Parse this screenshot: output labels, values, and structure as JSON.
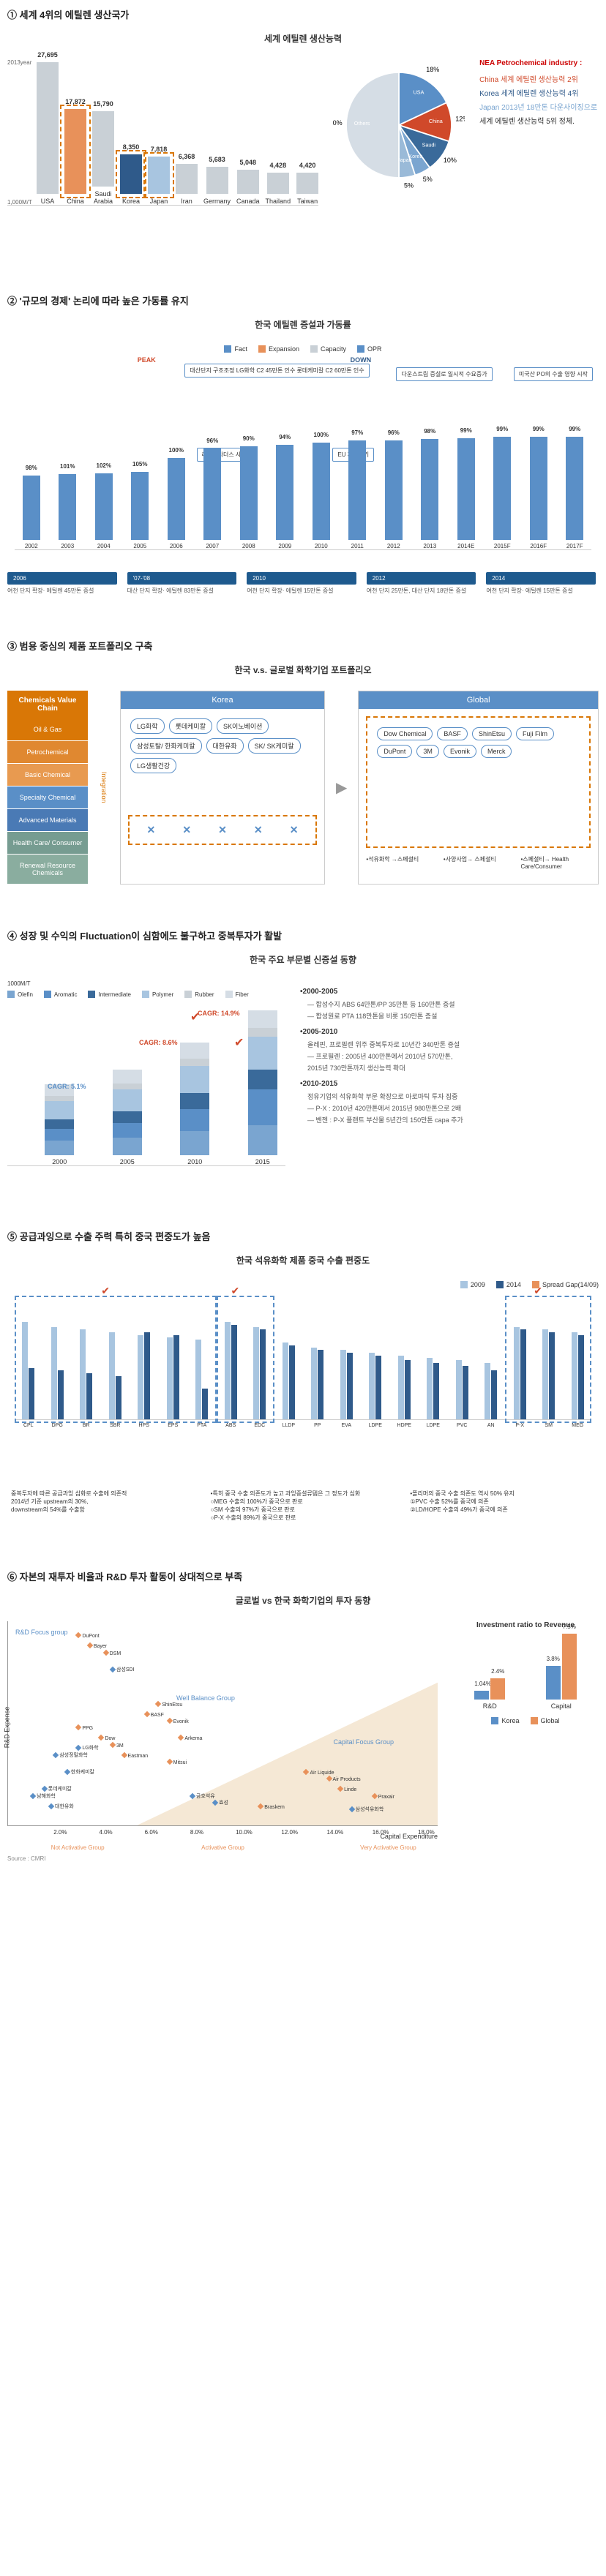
{
  "colors": {
    "bar_gray": "#c9d0d6",
    "bar_orange": "#e8915a",
    "bar_navy": "#2f5a8a",
    "bar_light_blue": "#a8c5e0",
    "pie_usa": "#5a8fc7",
    "pie_china": "#d0492a",
    "pie_saudi": "#3a6a9a",
    "pie_korea": "#7aa5d0",
    "pie_japan": "#9abad8",
    "pie_others": "#d5dde5",
    "fact": "#5a8fc7",
    "expansion": "#e8915a",
    "capacity": "#c9d0d6",
    "chain_oil": "#d97706",
    "chain_petro": "#e08830",
    "chain_basic": "#e89a50",
    "chain_specialty": "#5a8fc7",
    "chain_advanced": "#4a7ab5",
    "chain_health": "#769c91",
    "chain_renewal": "#8aad9f",
    "olefin": "#7aa5d0",
    "aromatic": "#5a8fc7",
    "intermediate": "#3a6a9a",
    "polymer": "#a8c5e0",
    "rubber": "#c9d0d6",
    "fiber": "#d5dde5",
    "s5_2009": "#a8c5e0",
    "s5_2014": "#2f5a8a",
    "s5_spread": "#e8915a",
    "scatter_global": "#e8915a",
    "scatter_korea": "#5a8fc7",
    "scatter_bg": "#f5e8d5"
  },
  "s1": {
    "title": "① 세계 4위의 에틸렌 생산국가",
    "chart_title": "세계 에틸렌 생산능력",
    "y_label_top": "2013year",
    "y_label_unit": "1,000M/T",
    "bars": [
      {
        "label": "USA",
        "value": 27695,
        "color": "#c9d0d6"
      },
      {
        "label": "China",
        "value": 17872,
        "color": "#e8915a",
        "boxed": true
      },
      {
        "label": "Saudi Arabia",
        "value": 15790,
        "color": "#c9d0d6"
      },
      {
        "label": "Korea",
        "value": 8350,
        "color": "#2f5a8a",
        "boxed": true
      },
      {
        "label": "Japan",
        "value": 7818,
        "color": "#a8c5e0",
        "boxed": true
      },
      {
        "label": "Iran",
        "value": 6368,
        "color": "#c9d0d6"
      },
      {
        "label": "Germany",
        "value": 5683,
        "color": "#c9d0d6"
      },
      {
        "label": "Canada",
        "value": 5048,
        "color": "#c9d0d6"
      },
      {
        "label": "Thailand",
        "value": 4428,
        "color": "#c9d0d6"
      },
      {
        "label": "Taiwan",
        "value": 4420,
        "color": "#c9d0d6"
      }
    ],
    "pie": [
      {
        "label": "USA",
        "pct": 18,
        "color": "#5a8fc7"
      },
      {
        "label": "China",
        "pct": 12,
        "color": "#d0492a"
      },
      {
        "label": "Saudi",
        "pct": 10,
        "color": "#3a6a9a"
      },
      {
        "label": "Korea",
        "pct": 5,
        "color": "#7aa5d0"
      },
      {
        "label": "Japan",
        "pct": 5,
        "color": "#9abad8"
      },
      {
        "label": "Others",
        "pct": 50,
        "color": "#d5dde5"
      }
    ],
    "legend_title": "NEA Petrochemical industry :",
    "legend_items": [
      {
        "text": "China 세계 에틸렌 생산능력 2위",
        "color": "#d0492a"
      },
      {
        "text": "Korea 세계 에틸렌 생산능력 4위",
        "color": "#2f5a8a"
      },
      {
        "text": "Japan 2013년 18만톤 다운사이징으로",
        "color": "#7aa5d0"
      },
      {
        "text": "세계 에틸렌 생산능력 5위 정체.",
        "color": "#333"
      }
    ]
  },
  "s2": {
    "title": "② '규모의 경제' 논리에 따라 높은 가동률 유지",
    "chart_title": "한국 에틸렌 증설과 가동률",
    "legend": [
      "Fact",
      "Expansion",
      "Capacity",
      "OPR"
    ],
    "peak_label": "PEAK",
    "down_label": "DOWN",
    "years": [
      "2002",
      "2003",
      "2004",
      "2005",
      "2006",
      "2007",
      "2008",
      "2009",
      "2010",
      "2011",
      "2012",
      "2013",
      "2014E",
      "2015F",
      "2016F",
      "2017F"
    ],
    "opr": [
      98,
      101,
      102,
      105,
      100,
      96,
      90,
      94,
      100,
      97,
      96,
      98,
      99,
      99,
      99,
      99
    ],
    "capacity": [
      550,
      560,
      570,
      580,
      700,
      780,
      800,
      810,
      830,
      850,
      850,
      860,
      870,
      880,
      880,
      880
    ],
    "annotations": [
      {
        "text": "대산단지 구조조정\nLG화학 C2 45만톤 인수\n롯데케미칼 C2 60만톤 인수",
        "pos": "top-center"
      },
      {
        "text": "다운스트림 증설로\n일시적 수요증가",
        "pos": "top-right"
      },
      {
        "text": "리먼브라더스\n사태",
        "pos": "mid-left"
      },
      {
        "text": "EU 재정위기",
        "pos": "mid-center"
      },
      {
        "text": "미국산 PO의\n수출 영향 시작",
        "pos": "top-far-right"
      }
    ],
    "milestones": [
      {
        "year": "2006",
        "desc": "여천 단지 확장·\n에틸렌 45만톤 증설"
      },
      {
        "year": "'07-'08",
        "desc": "대산 단지 확장·\n에틸렌 83만톤 증설"
      },
      {
        "year": "2010",
        "desc": "여천 단지 확장·\n에틸렌 15만톤 증설"
      },
      {
        "year": "2012",
        "desc": "여천 단지 25만톤,\n대산 단지 18만톤 증설"
      },
      {
        "year": "2014",
        "desc": "여천 단지 확장·\n에틸렌 15만톤 증설"
      }
    ]
  },
  "s3": {
    "title": "③ 범용 중심의 제품 포트폴리오 구축",
    "chart_title": "한국 v.s. 글로벌 화학기업 포트폴리오",
    "chain_header": "Chemicals\nValue Chain",
    "chain": [
      {
        "label": "Oil & Gas",
        "color": "#d97706"
      },
      {
        "label": "Petrochemical",
        "color": "#e08830"
      },
      {
        "label": "Basic Chemical",
        "color": "#e89a50"
      },
      {
        "label": "Specialty\nChemical",
        "color": "#5a8fc7"
      },
      {
        "label": "Advanced\nMaterials",
        "color": "#4a7ab5"
      },
      {
        "label": "Health Care/\nConsumer",
        "color": "#769c91"
      },
      {
        "label": "Renewal\nResource\nChemicals",
        "color": "#8aad9f"
      }
    ],
    "integration_label": "Integration",
    "korea_header": "Korea",
    "korea_companies": [
      "LG화학",
      "롯데케미칼",
      "SK이노베이션",
      "삼성토탈/\n한화케미칼",
      "대한유화",
      "SK/\nSK케미칼",
      "LG생활건강"
    ],
    "global_header": "Global",
    "global_companies": [
      "Dow\nChemical",
      "BASF",
      "ShinEtsu",
      "Fuji Film",
      "DuPont",
      "3M",
      "Evonik",
      "Merck"
    ],
    "arrows": [
      "•석유화학\n→스페셜티",
      "•사양사업→\n스페셜티",
      "•스페셜티→\nHealth Care/Consumer"
    ]
  },
  "s4": {
    "title": "④ 성장 및 수익의 Fluctuation이 심함에도 불구하고 중복투자가 활발",
    "chart_title": "한국 주요 부문별 신증설 동향",
    "y_unit": "1000M/T",
    "legend": [
      "Olefin",
      "Aromatic",
      "Intermediate",
      "Polymer",
      "Rubber",
      "Fiber"
    ],
    "years": [
      "2000",
      "2005",
      "2010",
      "2015"
    ],
    "stacks": [
      [
        3500,
        2800,
        2200,
        4500,
        1200,
        2800
      ],
      [
        4200,
        3500,
        2800,
        5200,
        1500,
        3200
      ],
      [
        5800,
        5200,
        3800,
        6500,
        1800,
        3800
      ],
      [
        7200,
        8500,
        4800,
        7800,
        2200,
        4200
      ]
    ],
    "cagr": [
      {
        "label": "CAGR: 5.1%",
        "color": "#5a8fc7",
        "pos": "left"
      },
      {
        "label": "CAGR: 8.6%",
        "color": "#d0492a",
        "pos": "center"
      },
      {
        "label": "CAGR: 14.9%",
        "color": "#d0492a",
        "pos": "right"
      }
    ],
    "notes": [
      {
        "period": "•2000-2005",
        "items": [
          "— 합성수지 ABS 64만톤/PP 35만톤 등 160만톤 증설",
          "— 합성원료 PTA 118만톤을 비롯 150만톤 증설"
        ]
      },
      {
        "period": "•2005-2010",
        "items": [
          "올레핀, 프로필렌 위주 중복투자로 10년간 340만톤 증설",
          "— 프로필렌 : 2005년 400만톤에서 2010년 570만톤,",
          "2015년 730만톤까지 생산능력 확대"
        ]
      },
      {
        "period": "•2010-2015",
        "items": [
          "정유기업의 석유화학 부문 확장으로 아로마틱 투자 집중",
          "— P-X : 2010년 420만톤에서 2015년 980만톤으로 2배",
          "— 벤젠 : P-X 플랜트 부산물 5년간의 150만톤 capa 추가"
        ]
      }
    ]
  },
  "s5": {
    "title": "⑤ 공급과잉으로 수출 주력 특히 중국 편중도가 높음",
    "chart_title": "한국 석유화학 제품 중국 수출 편중도",
    "legend": [
      "2009",
      "2014",
      "Spread Gap(14/09)"
    ],
    "products": [
      "CPL",
      "DPG",
      "BR",
      "SBR",
      "HPS",
      "EPS",
      "PTA",
      "ABS",
      "EDC",
      "LLDP",
      "PP",
      "EVA",
      "LDPE",
      "HDPE",
      "LDPE",
      "PVC",
      "AN",
      "P-X",
      "SM",
      "MEG"
    ],
    "v2009": [
      95,
      90,
      88,
      85,
      82,
      80,
      78,
      95,
      90,
      75,
      70,
      68,
      65,
      62,
      60,
      58,
      55,
      90,
      88,
      85
    ],
    "v2014": [
      50,
      48,
      45,
      42,
      85,
      82,
      30,
      92,
      88,
      72,
      68,
      65,
      62,
      58,
      55,
      52,
      48,
      88,
      85,
      82
    ],
    "boxes": [
      {
        "start": 0,
        "end": 6
      },
      {
        "start": 7,
        "end": 8
      },
      {
        "start": 17,
        "end": 19
      }
    ],
    "notes": [
      "중복투자에 따른 공급과잉 심화로 수출에 의존적\n2014년 기준 upstream의 30%,\ndownstream의 54%를 수출함",
      "•특히 중국 수출 의존도가 높고 과잉증설류템은 그 정도가 심화\n○MEG 수출의 100%가 중국으로 판로\n○SM 수출의 97%가 중국으로 판로\n○P-X 수출의 89%가 중국으로 판로",
      "•폴리머의 중국 수출 의존도 역시 50% 유지\n①PVC 수출 52%를 중국에 의존\n②LD/HOPE 수출의 49%가 중국에 의존"
    ]
  },
  "s6": {
    "title": "⑥ 자본의 재투자 비율과 R&D 투자 활동이 상대적으로 부족",
    "chart_title": "글로벌 vs 한국 화학기업의 투자 동향",
    "x_label": "Capital Expenditure",
    "y_label": "R&D Expense",
    "x_ticks": [
      "2.0%",
      "4.0%",
      "6.0%",
      "8.0%",
      "10.0%",
      "12.0%",
      "14.0%",
      "16.0%",
      "18.0%"
    ],
    "y_ticks": [
      "1.0%",
      "2.0%",
      "3.0%",
      "4.0%",
      "5.0%",
      "6.0%"
    ],
    "regions": [
      "R&D Focus group",
      "Well Balance Group",
      "Capital Focus Group",
      "Not Activative Group",
      "Activative Group",
      "Very Activative Group"
    ],
    "points_global": [
      {
        "label": "DuPont",
        "x": 3,
        "y": 5.5
      },
      {
        "label": "Bayer",
        "x": 3.5,
        "y": 5.2
      },
      {
        "label": "DSM",
        "x": 4.2,
        "y": 5
      },
      {
        "label": "PPG",
        "x": 3,
        "y": 2.8
      },
      {
        "label": "Dow",
        "x": 4,
        "y": 2.5
      },
      {
        "label": "3M",
        "x": 4.5,
        "y": 2.3
      },
      {
        "label": "Eastman",
        "x": 5,
        "y": 2
      },
      {
        "label": "BASF",
        "x": 6,
        "y": 3.2
      },
      {
        "label": "Evonik",
        "x": 7,
        "y": 3
      },
      {
        "label": "Arkema",
        "x": 7.5,
        "y": 2.5
      },
      {
        "label": "Mitsui",
        "x": 7,
        "y": 1.8
      },
      {
        "label": "ShinEtsu",
        "x": 6.5,
        "y": 3.5
      },
      {
        "label": "Air Liquide",
        "x": 13,
        "y": 1.5
      },
      {
        "label": "Air Products",
        "x": 14,
        "y": 1.3
      },
      {
        "label": "Linde",
        "x": 14.5,
        "y": 1
      },
      {
        "label": "Praxair",
        "x": 16,
        "y": 0.8
      },
      {
        "label": "Braskem",
        "x": 11,
        "y": 0.5
      }
    ],
    "points_korea": [
      {
        "label": "삼성SDI",
        "x": 4.5,
        "y": 4.5
      },
      {
        "label": "LG화학",
        "x": 3,
        "y": 2.2
      },
      {
        "label": "삼성정밀화학",
        "x": 2,
        "y": 2
      },
      {
        "label": "한화케미칼",
        "x": 2.5,
        "y": 1.5
      },
      {
        "label": "롯데케미칼",
        "x": 1.5,
        "y": 1
      },
      {
        "label": "남해화학",
        "x": 1,
        "y": 0.8
      },
      {
        "label": "대한유화",
        "x": 1.8,
        "y": 0.5
      },
      {
        "label": "금호석유",
        "x": 8,
        "y": 0.8
      },
      {
        "label": "효성",
        "x": 9,
        "y": 0.6
      },
      {
        "label": "삼성석유화학",
        "x": 15,
        "y": 0.4
      }
    ],
    "side_title": "Investment ratio to Revenue",
    "side_cats": [
      "R&D",
      "Capital"
    ],
    "side_data": [
      {
        "korea": 1.04,
        "global": 2.4
      },
      {
        "korea": 3.8,
        "global": 7.5
      }
    ],
    "side_legend": [
      "Korea",
      "Global"
    ],
    "source": "Source : CMRI"
  }
}
